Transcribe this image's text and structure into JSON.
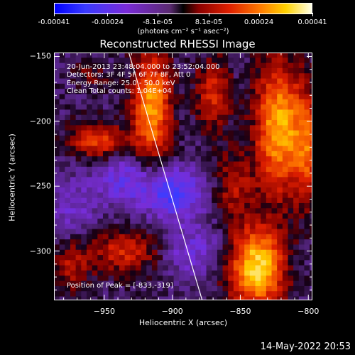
{
  "colorbar": {
    "tick_labels": [
      "-0.00041",
      "-0.00024",
      "-8.1e-05",
      "8.1e-05",
      "0.00024",
      "0.00041"
    ],
    "tick_values": [
      -0.00041,
      -0.00024,
      -8.1e-05,
      8.1e-05,
      0.00024,
      0.00041
    ],
    "units": "(photons cm⁻² s⁻¹ asec⁻²)",
    "range": [
      -0.00041,
      0.00041
    ],
    "colors": [
      "#0000ff",
      "#7a2bd8",
      "#000000",
      "#e02000",
      "#ff7a00",
      "#ffd200",
      "#ffffe8"
    ]
  },
  "annotations": {
    "time": "20-Jun-2013 23:48:04.000 to 23:52:04.000",
    "detectors": "Detectors: 3F 4F 5F 6F 7F 8F, Att 0",
    "energy": "Energy Range: 25.0 - 50.0 keV",
    "clean": "Clean    Total counts: 1.04E+04",
    "peak": "Position of Peak = [-833,-319]"
  },
  "timestamp": "14-May-2022 20:53",
  "chart_data": {
    "type": "heatmap",
    "title": "Reconstructed RHESSI Image",
    "xlabel": "Heliocentric X (arcsec)",
    "ylabel": "Heliocentric Y (arcsec)",
    "xlim": [
      -987,
      -797
    ],
    "ylim": [
      -338,
      -147
    ],
    "xticks": [
      -950,
      -900,
      -850,
      -800
    ],
    "yticks": [
      -150,
      -200,
      -250,
      -300
    ],
    "xtick_labels": [
      "−950",
      "−900",
      "−850",
      "−800"
    ],
    "ytick_labels": [
      "−150",
      "−200",
      "−250",
      "−300"
    ],
    "limb_line": [
      [
        -932,
        -147
      ],
      [
        -878,
        -338
      ]
    ],
    "peak": [
      -833,
      -319
    ],
    "sources": [
      {
        "x": -838,
        "y": -313,
        "amp": 1.0,
        "sx": 14,
        "sy": 22
      },
      {
        "x": -822,
        "y": -205,
        "amp": 0.85,
        "sx": 12,
        "sy": 35
      },
      {
        "x": -915,
        "y": -190,
        "amp": 0.8,
        "sx": 10,
        "sy": 30
      },
      {
        "x": -955,
        "y": -215,
        "amp": 0.55,
        "sx": 14,
        "sy": 10
      },
      {
        "x": -800,
        "y": -220,
        "amp": 0.55,
        "sx": 8,
        "sy": 30
      },
      {
        "x": -870,
        "y": -180,
        "amp": 0.45,
        "sx": 9,
        "sy": 20
      },
      {
        "x": -935,
        "y": -300,
        "amp": 0.45,
        "sx": 18,
        "sy": 12
      },
      {
        "x": -855,
        "y": -250,
        "amp": 0.35,
        "sx": 10,
        "sy": 18
      },
      {
        "x": -975,
        "y": -310,
        "amp": 0.35,
        "sx": 10,
        "sy": 16
      },
      {
        "x": -960,
        "y": -165,
        "amp": 0.2,
        "sx": 10,
        "sy": 8
      },
      {
        "x": -900,
        "y": -255,
        "amp": -0.55,
        "sx": 16,
        "sy": 14
      },
      {
        "x": -935,
        "y": -245,
        "amp": -0.35,
        "sx": 14,
        "sy": 14
      },
      {
        "x": -885,
        "y": -300,
        "amp": -0.3,
        "sx": 16,
        "sy": 14
      },
      {
        "x": -975,
        "y": -270,
        "amp": -0.25,
        "sx": 14,
        "sy": 20
      }
    ]
  }
}
